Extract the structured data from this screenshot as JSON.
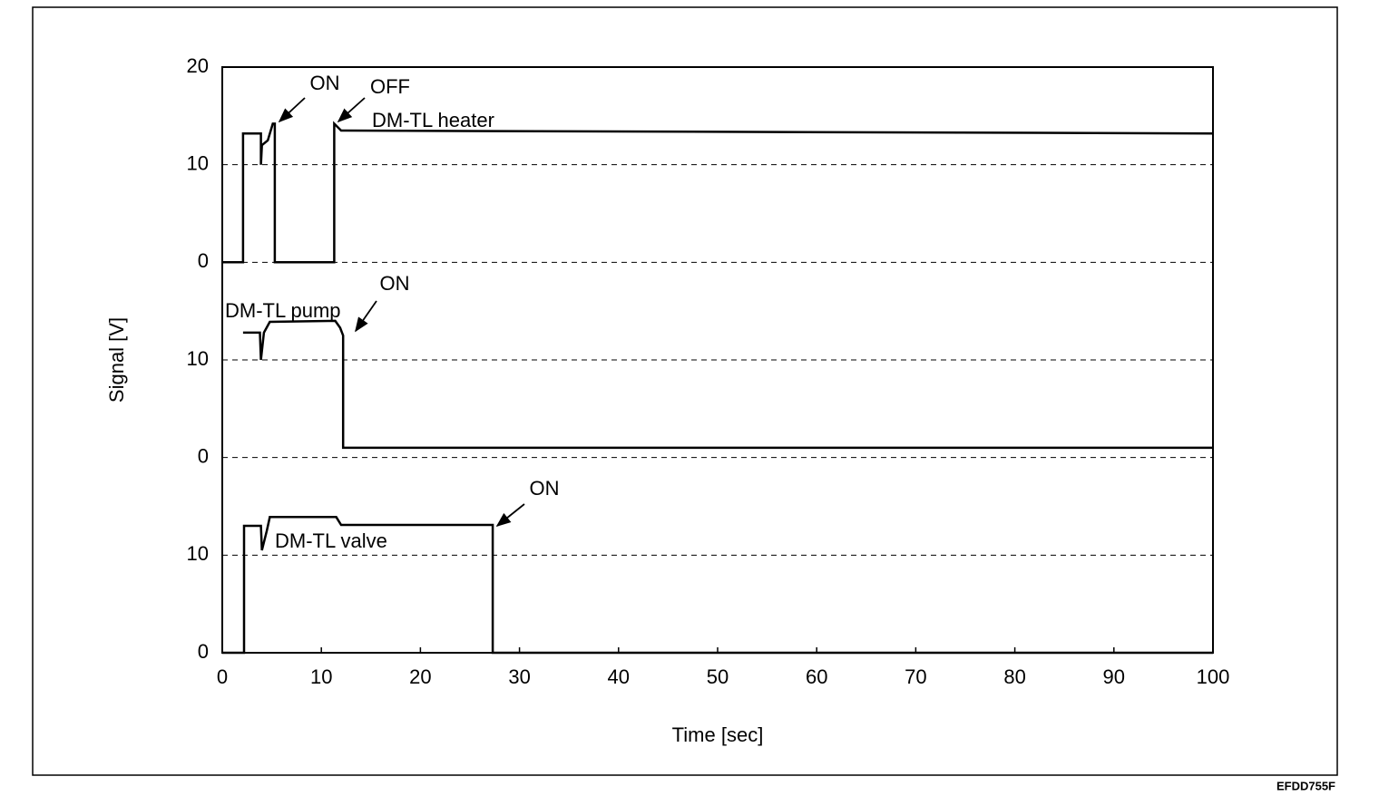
{
  "chart_data": [
    {
      "type": "line",
      "x": [
        0,
        2.1,
        2.1,
        3.9,
        3.9,
        4.0,
        4.6,
        5.1,
        5.3,
        5.3,
        11.3,
        11.3,
        12,
        100
      ],
      "series": [
        {
          "name": "DM-TL heater",
          "color": "#000000",
          "values": [
            0,
            0,
            13.2,
            13.2,
            10,
            12,
            12.5,
            14.2,
            14.2,
            0,
            0,
            14.2,
            13.5,
            13.2
          ]
        }
      ],
      "annotations": [
        "ON",
        "OFF"
      ],
      "xlim": [
        0,
        100
      ],
      "ylim": [
        0,
        20
      ],
      "yticks": [
        0,
        10,
        20
      ],
      "grid": true
    },
    {
      "type": "line",
      "x": [
        2.1,
        3.8,
        3.9,
        4.2,
        4.8,
        11.4,
        11.9,
        12.2,
        12.2,
        100
      ],
      "series": [
        {
          "name": "DM-TL pump",
          "color": "#000000",
          "values": [
            12.8,
            12.8,
            10,
            12.8,
            13.9,
            14,
            13.3,
            12.5,
            1.0,
            1.0
          ]
        }
      ],
      "annotations": [
        "ON"
      ],
      "ylabel": "Signal [V]",
      "xlim": [
        0,
        100
      ],
      "ylim": [
        0,
        20
      ],
      "yticks": [
        0,
        10
      ],
      "grid": true
    },
    {
      "type": "line",
      "x": [
        0,
        2.2,
        2.2,
        3.9,
        4.0,
        4.5,
        4.8,
        11.5,
        12,
        27.3,
        27.3,
        100
      ],
      "series": [
        {
          "name": "DM-TL valve",
          "color": "#000000",
          "values": [
            0,
            0,
            13,
            13,
            10.5,
            12.5,
            13.9,
            13.9,
            13.1,
            13.1,
            0,
            0
          ]
        }
      ],
      "annotations": [
        "ON"
      ],
      "xlabel": "Time [sec]",
      "xlim": [
        0,
        100
      ],
      "xticks": [
        0,
        10,
        20,
        30,
        40,
        50,
        60,
        70,
        80,
        90,
        100
      ],
      "ylim": [
        0,
        20
      ],
      "yticks": [
        0,
        10
      ],
      "grid": true
    }
  ],
  "footer": "EFDD755F"
}
